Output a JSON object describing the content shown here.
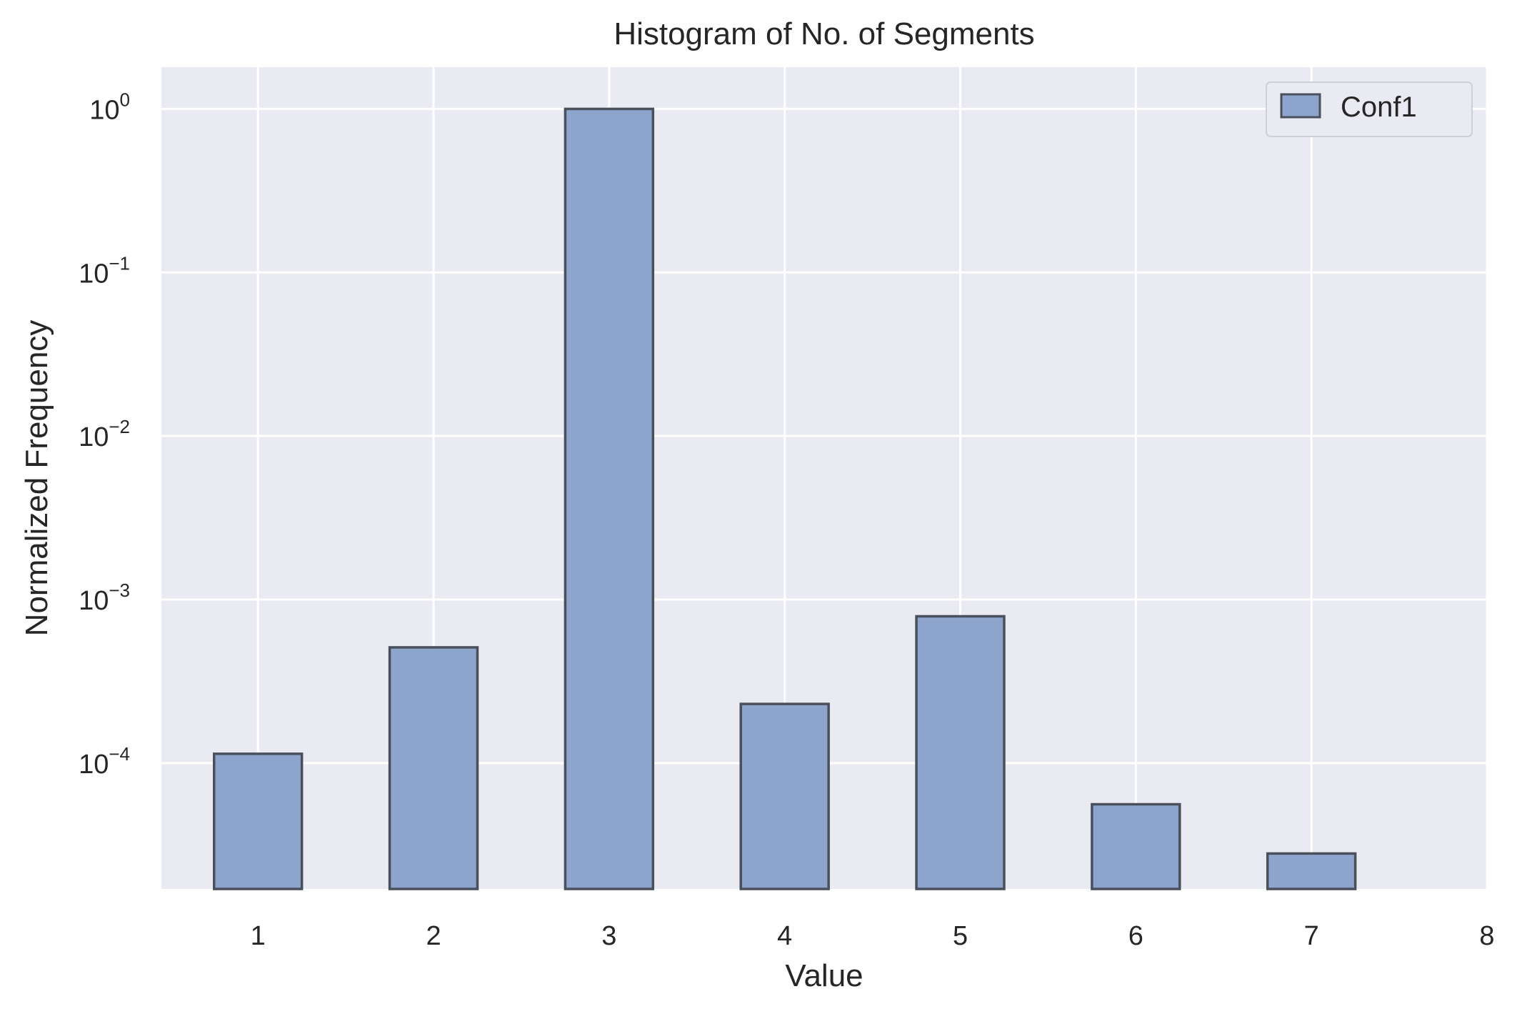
{
  "chart_data": {
    "type": "bar",
    "title": "Histogram of No. of Segments",
    "xlabel": "Value",
    "ylabel": "Normalized Frequency",
    "yscale": "log",
    "xlim": [
      0.45,
      8.0
    ],
    "ylim": [
      1.7e-05,
      1.8
    ],
    "xticks": [
      1,
      2,
      3,
      4,
      5,
      6,
      7,
      8
    ],
    "yticks": [
      {
        "value": 1,
        "base": "10",
        "exp": "0"
      },
      {
        "value": 0.1,
        "base": "10",
        "exp": "−1"
      },
      {
        "value": 0.01,
        "base": "10",
        "exp": "−2"
      },
      {
        "value": 0.001,
        "base": "10",
        "exp": "−3"
      },
      {
        "value": 0.0001,
        "base": "10",
        "exp": "−4"
      }
    ],
    "grid": true,
    "legend_position": "upper right",
    "series": [
      {
        "name": "Conf1",
        "color": "#8da5cc",
        "edge_color": "#4a4f5c",
        "x": [
          1,
          2,
          3,
          4,
          5,
          6,
          7
        ],
        "values": [
          0.000114,
          0.00051,
          1.0,
          0.00023,
          0.00079,
          5.6e-05,
          2.8e-05
        ]
      }
    ],
    "bar_width": 0.5,
    "background_color": "#eaeaf2",
    "grid_color": "#ffffff",
    "text_color": "#262626"
  }
}
